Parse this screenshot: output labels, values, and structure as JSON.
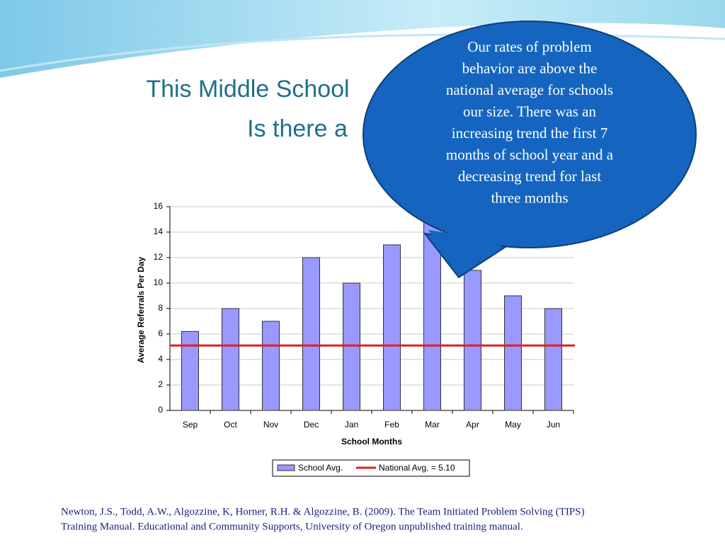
{
  "slide": {
    "title_lines": [
      "This Middle School",
      "Is there a"
    ],
    "callout_lines": [
      "Our rates of problem",
      "behavior are above the",
      "national average for schools",
      "our size. There was an",
      "increasing trend the first 7",
      "months of school year and a",
      "decreasing trend for last",
      "three months"
    ],
    "citation_lines": [
      "Newton, J.S., Todd, A.W., Algozzine, K, Horner, R.H. & Algozzine, B. (2009). The Team Initiated Problem Solving (TIPS)",
      "Training Manual. Educational and Community Supports, University of Oregon unpublished training manual."
    ]
  },
  "chart_data": {
    "type": "bar",
    "x_label": "School Months",
    "y_label": "Average Referrals Per Day",
    "categories": [
      "Sep",
      "Oct",
      "Nov",
      "Dec",
      "Jan",
      "Feb",
      "Mar",
      "Apr",
      "May",
      "Jun"
    ],
    "series": [
      {
        "name": "School Avg.",
        "color": "#9999ff",
        "values": [
          6.2,
          8,
          7,
          12,
          10,
          13,
          15,
          11,
          9,
          8
        ]
      },
      {
        "name": "National Avg. = 5.10",
        "color": "#e02020",
        "type": "hline",
        "value": 5.1
      }
    ],
    "ylim": [
      0,
      16
    ],
    "yticks": [
      0,
      2,
      4,
      6,
      8,
      10,
      12,
      14,
      16
    ],
    "grid": true,
    "legend": "bottom"
  }
}
